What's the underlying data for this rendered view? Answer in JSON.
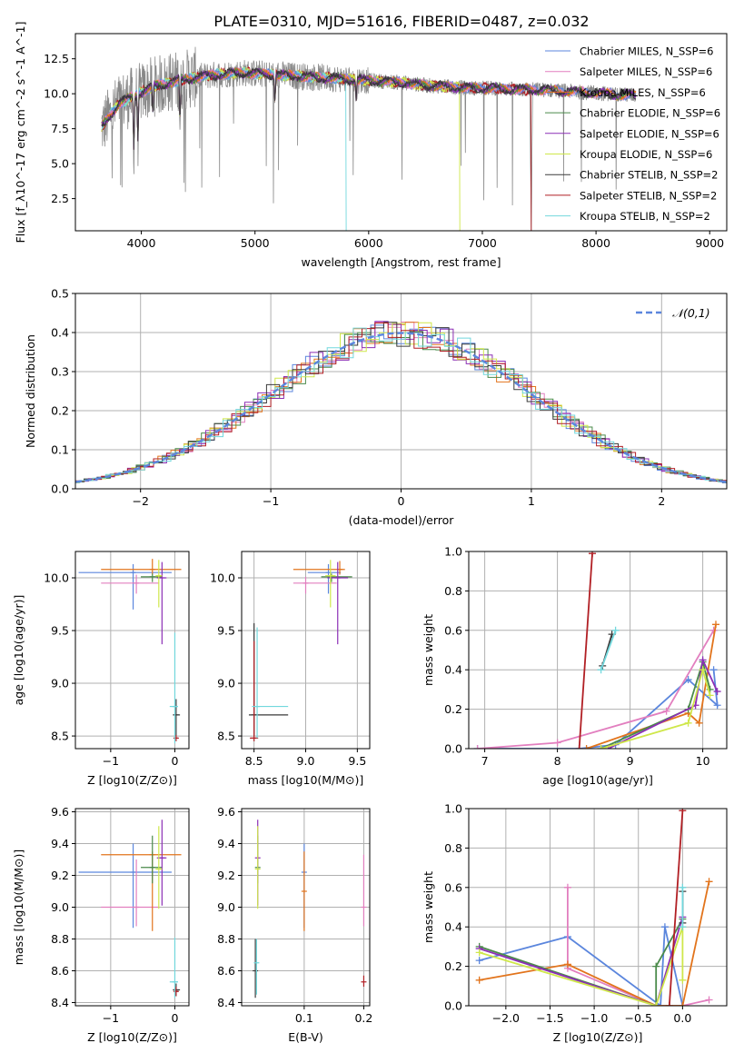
{
  "figure": {
    "title": "PLATE=0310, MJD=51616, FIBERID=0487, z=0.032"
  },
  "colors": {
    "blue": "#5b86dd",
    "pink": "#e27fbf",
    "orange": "#e2741c",
    "green": "#4a8a4a",
    "purple": "#8c2fb5",
    "yellow": "#cfe74a",
    "dark": "#3a3a3a",
    "red": "#b11f24",
    "cyan": "#72d8dd",
    "grid": "#b0b0b0",
    "spectrum": "#888888"
  },
  "chart_data": [
    {
      "id": "spectrum",
      "type": "line",
      "xlabel": "wavelength [Angstrom, rest frame]",
      "ylabel": "Flux [f_λ10^-17 erg cm^-2 s^-1 A^-1]",
      "xlim": [
        3420,
        9150
      ],
      "ylim": [
        0.2,
        14.3
      ],
      "xticks": [
        "4000",
        "5000",
        "6000",
        "7000",
        "8000",
        "9000"
      ],
      "yticks": [
        "2.5",
        "5.0",
        "7.5",
        "10.0",
        "12.5"
      ],
      "grid": false,
      "legend_position": "upper right",
      "series": [
        {
          "name": "Chabrier MILES, N_SSP=6",
          "color": "blue"
        },
        {
          "name": "Salpeter MILES, N_SSP=6",
          "color": "pink"
        },
        {
          "name": "Kroupa MILES, N_SSP=6",
          "color": "orange"
        },
        {
          "name": "Chabrier ELODIE, N_SSP=6",
          "color": "green"
        },
        {
          "name": "Salpeter ELODIE, N_SSP=6",
          "color": "purple"
        },
        {
          "name": "Kroupa ELODIE, N_SSP=6",
          "color": "yellow"
        },
        {
          "name": "Chabrier STELIB, N_SSP=2",
          "color": "dark"
        },
        {
          "name": "Salpeter STELIB, N_SSP=2",
          "color": "red"
        },
        {
          "name": "Kroupa STELIB, N_SSP=2",
          "color": "cyan"
        }
      ],
      "continuum": {
        "x": [
          3650,
          3800,
          3950,
          4100,
          4300,
          4500,
          4700,
          4900,
          5100,
          5300,
          5500,
          5700,
          5900,
          6100,
          6300,
          6500,
          6700,
          6900,
          7100,
          7300,
          7500,
          7700,
          7900,
          8100,
          8300
        ],
        "y": [
          7.6,
          9.3,
          9.9,
          10.5,
          10.9,
          11.2,
          11.4,
          11.5,
          11.4,
          11.3,
          11.2,
          11.1,
          11.0,
          10.9,
          10.8,
          10.6,
          10.5,
          10.4,
          10.4,
          10.3,
          10.3,
          10.2,
          10.1,
          10.0,
          9.9
        ]
      },
      "features": [
        {
          "x": 3934,
          "y": 6.0
        },
        {
          "x": 3970,
          "y": 6.6
        },
        {
          "x": 4101,
          "y": 8.5
        },
        {
          "x": 4340,
          "y": 7.9
        },
        {
          "x": 5175,
          "y": 9.3
        },
        {
          "x": 5890,
          "y": 9.5
        },
        {
          "x": 7430,
          "y": 0.2
        }
      ]
    },
    {
      "id": "residuals",
      "type": "histogram",
      "xlabel": "(data-model)/error",
      "ylabel": "Normed distribution",
      "xlim": [
        -2.5,
        2.5
      ],
      "ylim": [
        0,
        0.5
      ],
      "xticks": [
        "−2",
        "−1",
        "0",
        "1",
        "2"
      ],
      "yticks": [
        "0.0",
        "0.1",
        "0.2",
        "0.3",
        "0.4",
        "0.5"
      ],
      "grid": true,
      "legend": "𝒩(0,1)",
      "bin_width": 0.1,
      "reference": {
        "type": "normal",
        "mean": 0,
        "sigma": 1
      }
    },
    {
      "id": "age-vs-Z",
      "type": "errorbar",
      "xlabel": "Z [log10(Z/Z⊙)]",
      "ylabel": "age  [log10(age/yr)]",
      "xlim": [
        -1.55,
        0.22
      ],
      "ylim": [
        8.38,
        10.25
      ],
      "xticks": [
        "−1",
        "0"
      ],
      "yticks": [
        "8.5",
        "9.0",
        "9.5",
        "10.0"
      ],
      "grid": true,
      "points": [
        {
          "color": "blue",
          "x": -0.65,
          "y": 10.05,
          "xerr": [
            0.85,
            0.6
          ],
          "yerr": [
            0.35,
            0.08
          ]
        },
        {
          "color": "pink",
          "x": -0.6,
          "y": 9.95,
          "xerr": [
            0.55,
            0.35
          ],
          "yerr": [
            0.1,
            0.08
          ]
        },
        {
          "color": "orange",
          "x": -0.35,
          "y": 10.08,
          "xerr": [
            0.8,
            0.45
          ],
          "yerr": [
            0.05,
            0.1
          ]
        },
        {
          "color": "green",
          "x": -0.35,
          "y": 10.01,
          "xerr": [
            0.18,
            0.15
          ],
          "yerr": [
            0.05,
            0.03
          ]
        },
        {
          "color": "purple",
          "x": -0.2,
          "y": 10.0,
          "xerr": [
            0.08,
            0.07
          ],
          "yerr": [
            0.63,
            0.15
          ]
        },
        {
          "color": "yellow",
          "x": -0.25,
          "y": 10.02,
          "xerr": [
            0.05,
            0.05
          ],
          "yerr": [
            0.3,
            0.15
          ]
        },
        {
          "color": "dark",
          "x": 0.02,
          "y": 8.7,
          "xerr": [
            0.05,
            0.06
          ],
          "yerr": [
            0.2,
            0.15
          ]
        },
        {
          "color": "red",
          "x": 0.02,
          "y": 8.48,
          "xerr": [
            0.03,
            0.03
          ],
          "yerr": [
            0.03,
            0.03
          ]
        },
        {
          "color": "cyan",
          "x": 0.0,
          "y": 8.78,
          "xerr": [
            0.08,
            0.05
          ],
          "yerr": [
            0.35,
            0.7
          ]
        }
      ]
    },
    {
      "id": "age-vs-mass",
      "type": "errorbar",
      "xlabel": "mass [log10(M/M⊙)]",
      "ylabel": "",
      "xlim": [
        8.38,
        9.62
      ],
      "ylim": [
        8.38,
        10.25
      ],
      "xticks": [
        "8.5",
        "9.0",
        "9.5"
      ],
      "yticks": [
        "8.5",
        "9.0",
        "9.5",
        "10.0"
      ],
      "grid": true,
      "points": [
        {
          "color": "blue",
          "x": 9.22,
          "y": 10.05,
          "xerr": [
            0.2,
            0.12
          ],
          "yerr": [
            0.2,
            0.08
          ]
        },
        {
          "color": "pink",
          "x": 9.0,
          "y": 9.95,
          "xerr": [
            0.12,
            0.3
          ],
          "yerr": [
            0.1,
            0.06
          ]
        },
        {
          "color": "orange",
          "x": 9.33,
          "y": 10.08,
          "xerr": [
            0.45,
            0.05
          ],
          "yerr": [
            0.05,
            0.08
          ]
        },
        {
          "color": "green",
          "x": 9.25,
          "y": 10.01,
          "xerr": [
            0.1,
            0.2
          ],
          "yerr": [
            0.05,
            0.03
          ]
        },
        {
          "color": "purple",
          "x": 9.31,
          "y": 10.0,
          "xerr": [
            0.1,
            0.1
          ],
          "yerr": [
            0.63,
            0.15
          ]
        },
        {
          "color": "yellow",
          "x": 9.24,
          "y": 10.02,
          "xerr": [
            0.05,
            0.05
          ],
          "yerr": [
            0.3,
            0.15
          ]
        },
        {
          "color": "dark",
          "x": 8.5,
          "y": 8.7,
          "xerr": [
            0.05,
            0.33
          ],
          "yerr": [
            0.2,
            0.87
          ]
        },
        {
          "color": "red",
          "x": 8.5,
          "y": 8.48,
          "xerr": [
            0.04,
            0.04
          ],
          "yerr": [
            0.03,
            0.92
          ]
        },
        {
          "color": "cyan",
          "x": 8.53,
          "y": 8.78,
          "xerr": [
            0.05,
            0.3
          ],
          "yerr": [
            0.3,
            0.75
          ]
        }
      ]
    },
    {
      "id": "weight-vs-age",
      "type": "line",
      "xlabel": "age  [log10(age/yr)]",
      "ylabel": "mass weight",
      "xlim": [
        6.78,
        10.33
      ],
      "ylim": [
        0,
        1.0
      ],
      "xticks": [
        "7",
        "8",
        "9",
        "10"
      ],
      "yticks": [
        "0.0",
        "0.2",
        "0.4",
        "0.6",
        "0.8",
        "1.0"
      ],
      "grid": true,
      "series": [
        {
          "color": "blue",
          "x": [
            6.9,
            8.3,
            8.8,
            9.8,
            10.2,
            10.15
          ],
          "y": [
            0.0,
            0.0,
            0.02,
            0.35,
            0.22,
            0.4
          ]
        },
        {
          "color": "pink",
          "x": [
            6.9,
            8.0,
            9.5,
            10.15
          ],
          "y": [
            0.0,
            0.03,
            0.19,
            0.6
          ]
        },
        {
          "color": "orange",
          "x": [
            8.4,
            9.8,
            9.95,
            10.18
          ],
          "y": [
            0.0,
            0.18,
            0.13,
            0.63
          ]
        },
        {
          "color": "green",
          "x": [
            8.6,
            9.8,
            10.0,
            10.1
          ],
          "y": [
            0.0,
            0.2,
            0.44,
            0.3
          ]
        },
        {
          "color": "purple",
          "x": [
            8.7,
            9.9,
            10.0,
            10.2
          ],
          "y": [
            0.0,
            0.22,
            0.45,
            0.29
          ]
        },
        {
          "color": "yellow",
          "x": [
            8.6,
            9.8,
            10.0,
            10.1
          ],
          "y": [
            0.0,
            0.13,
            0.4,
            0.27
          ]
        },
        {
          "color": "dark",
          "x": [
            8.62,
            8.75
          ],
          "y": [
            0.42,
            0.58
          ]
        },
        {
          "color": "red",
          "x": [
            8.3,
            8.48
          ],
          "y": [
            0.0,
            0.99
          ]
        },
        {
          "color": "cyan",
          "x": [
            8.6,
            8.8
          ],
          "y": [
            0.4,
            0.6
          ]
        }
      ]
    },
    {
      "id": "mass-vs-Z",
      "type": "errorbar",
      "xlabel": "Z [log10(Z/Z⊙)]",
      "ylabel": "mass [log10(M/M⊙)]",
      "xlim": [
        -1.55,
        0.22
      ],
      "ylim": [
        8.38,
        9.62
      ],
      "xticks": [
        "−1",
        "0"
      ],
      "yticks": [
        "8.4",
        "8.6",
        "8.8",
        "9.0",
        "9.2",
        "9.4",
        "9.6"
      ],
      "grid": true,
      "points": [
        {
          "color": "blue",
          "x": -0.65,
          "y": 9.22,
          "xerr": [
            0.85,
            0.6
          ],
          "yerr": [
            0.35,
            0.18
          ]
        },
        {
          "color": "pink",
          "x": -0.6,
          "y": 9.0,
          "xerr": [
            0.55,
            0.35
          ],
          "yerr": [
            0.12,
            0.3
          ]
        },
        {
          "color": "orange",
          "x": -0.35,
          "y": 9.33,
          "xerr": [
            0.8,
            0.45
          ],
          "yerr": [
            0.48,
            0.02
          ]
        },
        {
          "color": "green",
          "x": -0.35,
          "y": 9.25,
          "xerr": [
            0.18,
            0.15
          ],
          "yerr": [
            0.1,
            0.2
          ]
        },
        {
          "color": "purple",
          "x": -0.2,
          "y": 9.31,
          "xerr": [
            0.08,
            0.07
          ],
          "yerr": [
            0.3,
            0.24
          ]
        },
        {
          "color": "yellow",
          "x": -0.25,
          "y": 9.24,
          "xerr": [
            0.05,
            0.05
          ],
          "yerr": [
            0.25,
            0.27
          ]
        },
        {
          "color": "dark",
          "x": 0.02,
          "y": 8.48,
          "xerr": [
            0.05,
            0.06
          ],
          "yerr": [
            0.04,
            0.04
          ]
        },
        {
          "color": "red",
          "x": 0.02,
          "y": 8.47,
          "xerr": [
            0.03,
            0.03
          ],
          "yerr": [
            0.03,
            0.03
          ]
        },
        {
          "color": "cyan",
          "x": 0.0,
          "y": 8.53,
          "xerr": [
            0.08,
            0.05
          ],
          "yerr": [
            0.1,
            0.28
          ]
        }
      ]
    },
    {
      "id": "mass-vs-EBV",
      "type": "errorbar",
      "xlabel": "E(B-V)",
      "ylabel": "",
      "xlim": [
        -0.005,
        0.21
      ],
      "ylim": [
        8.38,
        9.62
      ],
      "xticks": [
        "0.1",
        "0.2"
      ],
      "yticks": [
        "8.4",
        "8.6",
        "8.8",
        "9.0",
        "9.2",
        "9.4",
        "9.6"
      ],
      "grid": true,
      "points": [
        {
          "color": "blue",
          "x": 0.1,
          "y": 9.22,
          "xerr": [
            0,
            0
          ],
          "yerr": [
            0.35,
            0.18
          ]
        },
        {
          "color": "pink",
          "x": 0.2,
          "y": 9.0,
          "xerr": [
            0,
            0
          ],
          "yerr": [
            0.12,
            0.33
          ]
        },
        {
          "color": "orange",
          "x": 0.1,
          "y": 9.1,
          "xerr": [
            0,
            0
          ],
          "yerr": [
            0.25,
            0.25
          ]
        },
        {
          "color": "green",
          "x": 0.022,
          "y": 9.25,
          "xerr": [
            0,
            0
          ],
          "yerr": [
            0.1,
            0.2
          ]
        },
        {
          "color": "purple",
          "x": 0.022,
          "y": 9.31,
          "xerr": [
            0,
            0
          ],
          "yerr": [
            0.3,
            0.24
          ]
        },
        {
          "color": "yellow",
          "x": 0.022,
          "y": 9.24,
          "xerr": [
            0,
            0
          ],
          "yerr": [
            0.25,
            0.27
          ]
        },
        {
          "color": "dark",
          "x": 0.018,
          "y": 8.6,
          "xerr": [
            0,
            0
          ],
          "yerr": [
            0.17,
            0.2
          ]
        },
        {
          "color": "red",
          "x": 0.2,
          "y": 8.53,
          "xerr": [
            0,
            0
          ],
          "yerr": [
            0.03,
            0.04
          ]
        },
        {
          "color": "cyan",
          "x": 0.02,
          "y": 8.65,
          "xerr": [
            0,
            0
          ],
          "yerr": [
            0.2,
            0.15
          ]
        }
      ]
    },
    {
      "id": "weight-vs-Z",
      "type": "line",
      "xlabel": "Z [log10(Z/Z⊙)]",
      "ylabel": "mass weight",
      "xlim": [
        -2.42,
        0.5
      ],
      "ylim": [
        0,
        1.0
      ],
      "xticks": [
        "−2.0",
        "−1.5",
        "−1.0",
        "−0.5",
        "0.0"
      ],
      "yticks": [
        "0.0",
        "0.2",
        "0.4",
        "0.6",
        "0.8",
        "1.0"
      ],
      "grid": true,
      "series": [
        {
          "color": "blue",
          "x": [
            -2.3,
            -1.3,
            -0.25,
            -0.2,
            0.0
          ],
          "y": [
            0.23,
            0.35,
            0.0,
            0.4,
            0.0
          ]
        },
        {
          "color": "pink",
          "x": [
            -1.3,
            -1.3,
            -0.3,
            0.0,
            0.3
          ],
          "y": [
            0.6,
            0.19,
            0.0,
            0.0,
            0.03
          ]
        },
        {
          "color": "orange",
          "x": [
            -2.3,
            -1.3,
            -0.3,
            0.0,
            0.3
          ],
          "y": [
            0.13,
            0.21,
            0.0,
            0.0,
            0.63
          ]
        },
        {
          "color": "green",
          "x": [
            -2.3,
            -0.3,
            -0.3,
            0.0
          ],
          "y": [
            0.3,
            0.0,
            0.2,
            0.44
          ]
        },
        {
          "color": "purple",
          "x": [
            -2.3,
            -0.3,
            0.0
          ],
          "y": [
            0.29,
            0.0,
            0.45
          ]
        },
        {
          "color": "yellow",
          "x": [
            -2.3,
            -0.3,
            0.0,
            0.0
          ],
          "y": [
            0.27,
            0.0,
            0.4,
            0.13
          ]
        },
        {
          "color": "dark",
          "x": [
            0.0,
            0.0
          ],
          "y": [
            0.42,
            0.58
          ]
        },
        {
          "color": "red",
          "x": [
            -0.15,
            0.0
          ],
          "y": [
            0.0,
            0.99
          ]
        },
        {
          "color": "cyan",
          "x": [
            0.0,
            0.0
          ],
          "y": [
            0.4,
            0.6
          ]
        }
      ]
    }
  ]
}
